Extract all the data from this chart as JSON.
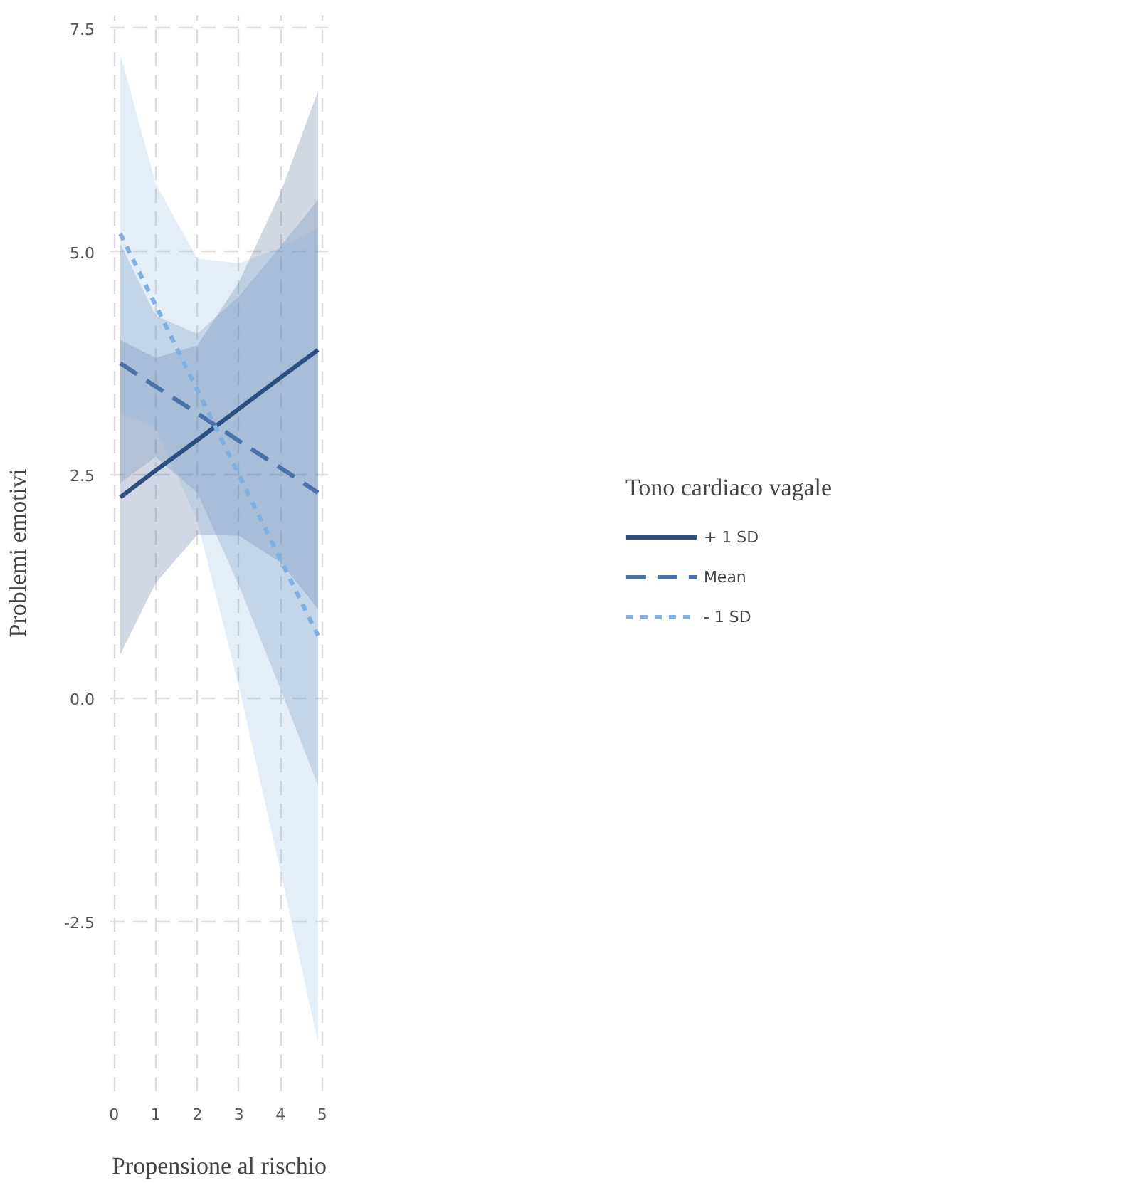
{
  "chart_data": {
    "type": "line",
    "xlabel": "Propensione al rischio",
    "ylabel": "Problemi emotivi",
    "legend_title": "Tono cardiaco vagale",
    "x": [
      0.15,
      1,
      2,
      3,
      4,
      4.9
    ],
    "xlim": [
      -0.09,
      5.14
    ],
    "ylim": [
      -4.4,
      7.65
    ],
    "xticks": [
      0,
      1,
      2,
      3,
      4,
      5
    ],
    "yticks": [
      {
        "value": -2.5,
        "label": "-2.5"
      },
      {
        "value": 0,
        "label": "0.0"
      },
      {
        "value": 2.5,
        "label": "2.5"
      },
      {
        "value": 5,
        "label": "5.0"
      },
      {
        "value": 7.5,
        "label": "7.5"
      }
    ],
    "grid": true,
    "legend": "right",
    "marker": "none",
    "series": [
      {
        "name": "+ 1 SD",
        "color": "#2c4e80",
        "line_style": "solid",
        "values": [
          2.25,
          2.55,
          2.89,
          3.24,
          3.59,
          3.9
        ],
        "lower": [
          0.49,
          1.29,
          1.83,
          1.82,
          1.52,
          1.0
        ],
        "upper": [
          4.01,
          3.81,
          3.95,
          4.66,
          5.66,
          6.8
        ]
      },
      {
        "name": "Mean",
        "color": "#4a72a8",
        "line_style": "dashed",
        "values": [
          3.75,
          3.49,
          3.19,
          2.88,
          2.58,
          2.3
        ],
        "lower": [
          2.41,
          2.7,
          2.3,
          1.26,
          0.1,
          -0.98
        ],
        "upper": [
          5.09,
          4.28,
          4.08,
          4.5,
          5.06,
          5.58
        ]
      },
      {
        "name": "- 1 SD",
        "color": "#7fb0e0",
        "line_style": "dotted",
        "values": [
          5.2,
          4.4,
          3.45,
          2.5,
          1.55,
          0.7
        ],
        "lower": [
          3.19,
          3.04,
          1.98,
          0.13,
          -1.94,
          -3.86
        ],
        "upper": [
          7.21,
          5.76,
          4.92,
          4.87,
          5.04,
          5.26
        ]
      }
    ]
  }
}
